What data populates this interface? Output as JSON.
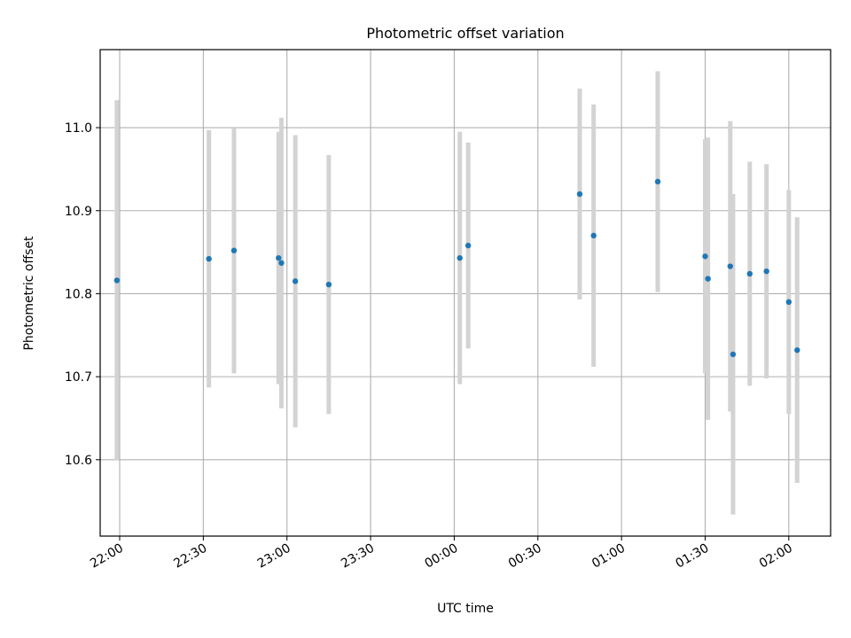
{
  "chart_data": {
    "type": "scatter",
    "title": "Photometric offset variation",
    "xlabel": "UTC time",
    "ylabel": "Photometric offset",
    "x_ticks": [
      "22:00",
      "22:30",
      "23:00",
      "23:30",
      "00:00",
      "00:30",
      "01:00",
      "01:30",
      "02:00"
    ],
    "y_ticks": [
      "10.6",
      "10.7",
      "10.8",
      "10.9",
      "11.0"
    ],
    "xlim": [
      "21:53",
      "02:15"
    ],
    "ylim": [
      10.508,
      11.094
    ],
    "grid": true,
    "legend": "none",
    "colors": {
      "point": "#1f77b4",
      "errorbar": "#d3d3d3",
      "grid": "#b0b0b0"
    },
    "points": [
      {
        "time": "21:59",
        "y": 10.816,
        "yerr": 0.217
      },
      {
        "time": "22:32",
        "y": 10.842,
        "yerr": 0.155
      },
      {
        "time": "22:41",
        "y": 10.852,
        "yerr": 0.148
      },
      {
        "time": "22:57",
        "y": 10.843,
        "yerr": 0.152
      },
      {
        "time": "22:58",
        "y": 10.837,
        "yerr": 0.175
      },
      {
        "time": "23:03",
        "y": 10.815,
        "yerr": 0.176
      },
      {
        "time": "23:15",
        "y": 10.811,
        "yerr": 0.156
      },
      {
        "time": "00:02",
        "y": 10.843,
        "yerr": 0.152
      },
      {
        "time": "00:05",
        "y": 10.858,
        "yerr": 0.124
      },
      {
        "time": "00:45",
        "y": 10.92,
        "yerr": 0.127
      },
      {
        "time": "00:50",
        "y": 10.87,
        "yerr": 0.158
      },
      {
        "time": "01:13",
        "y": 10.935,
        "yerr": 0.133
      },
      {
        "time": "01:30",
        "y": 10.845,
        "yerr": 0.141
      },
      {
        "time": "01:31",
        "y": 10.818,
        "yerr": 0.17
      },
      {
        "time": "01:39",
        "y": 10.833,
        "yerr": 0.175
      },
      {
        "time": "01:40",
        "y": 10.727,
        "yerr": 0.193
      },
      {
        "time": "01:46",
        "y": 10.824,
        "yerr": 0.135
      },
      {
        "time": "01:52",
        "y": 10.827,
        "yerr": 0.129
      },
      {
        "time": "02:00",
        "y": 10.79,
        "yerr": 0.135
      },
      {
        "time": "02:03",
        "y": 10.732,
        "yerr": 0.16
      }
    ]
  }
}
